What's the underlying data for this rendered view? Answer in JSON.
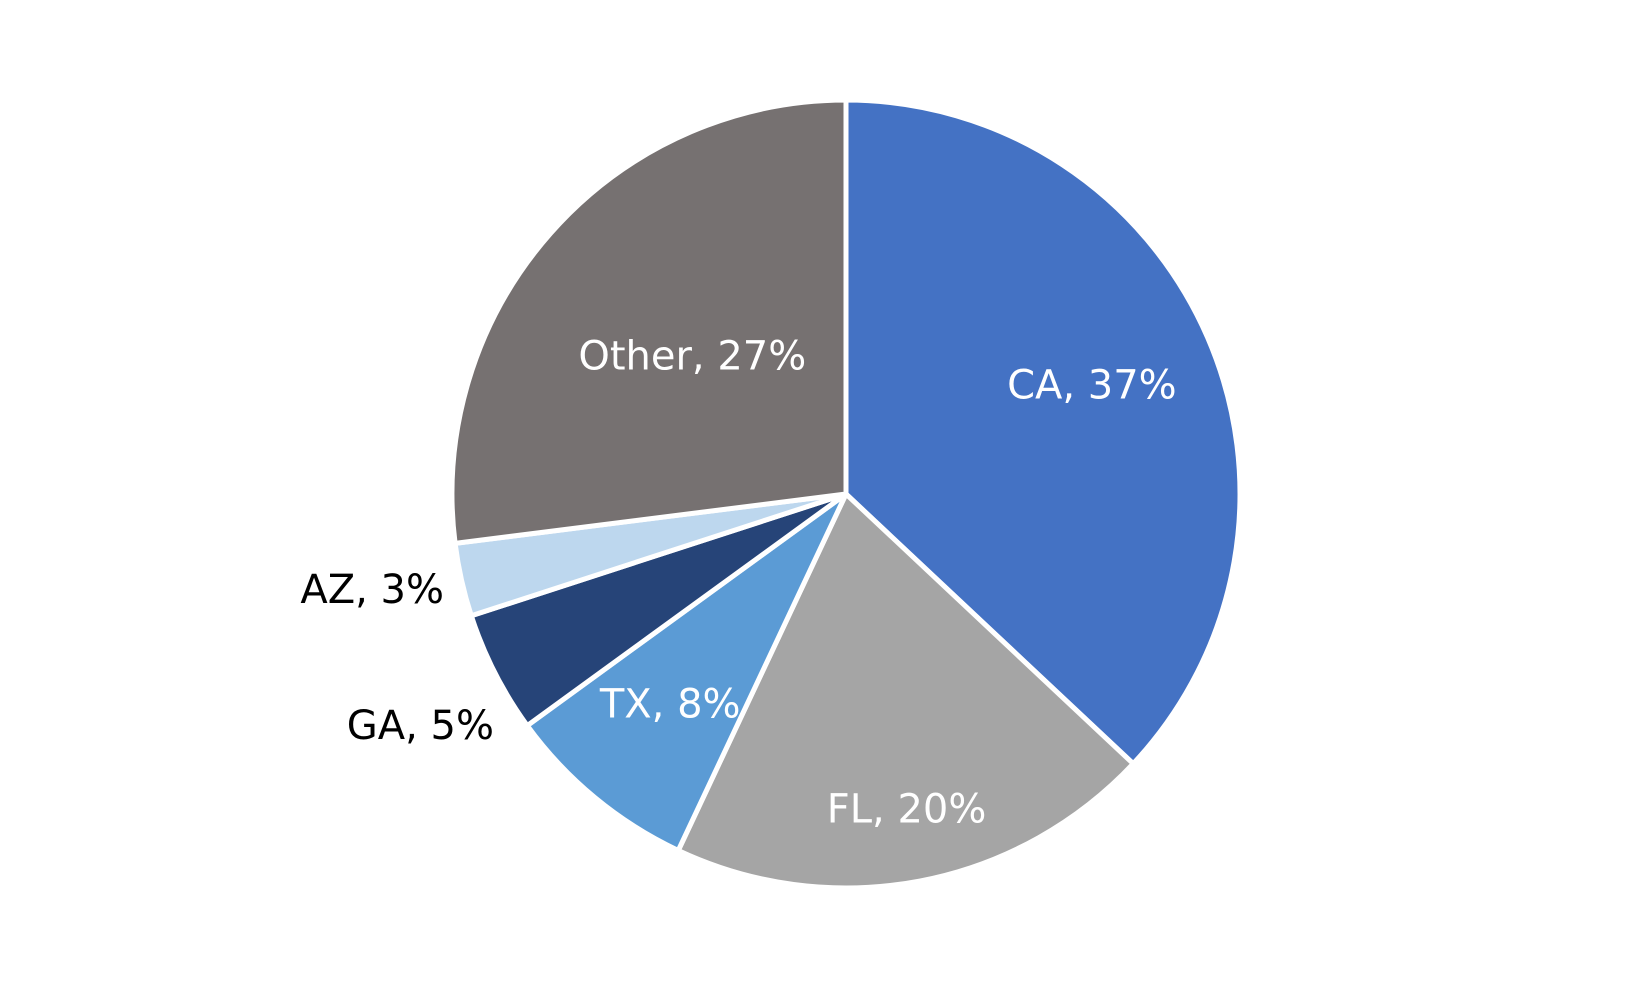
{
  "chart_data": {
    "type": "pie",
    "title": "",
    "start_angle_deg": 0,
    "direction": "clockwise",
    "slices": [
      {
        "label": "CA",
        "value": 37,
        "display": "CA, 37%",
        "color": "#4472C4",
        "label_color": "#ffffff"
      },
      {
        "label": "FL",
        "value": 20,
        "display": "FL, 20%",
        "color": "#A5A5A5",
        "label_color": "#ffffff"
      },
      {
        "label": "TX",
        "value": 8,
        "display": "TX, 8%",
        "color": "#5B9BD5",
        "label_color": "#ffffff"
      },
      {
        "label": "GA",
        "value": 5,
        "display": "GA, 5%",
        "color": "#264478",
        "label_color": "#000000"
      },
      {
        "label": "AZ",
        "value": 3,
        "display": "AZ, 3%",
        "color": "#BDD7EE",
        "label_color": "#000000"
      },
      {
        "label": "Other",
        "value": 27,
        "display": "Other, 27%",
        "color": "#767171",
        "label_color": "#ffffff"
      }
    ]
  }
}
